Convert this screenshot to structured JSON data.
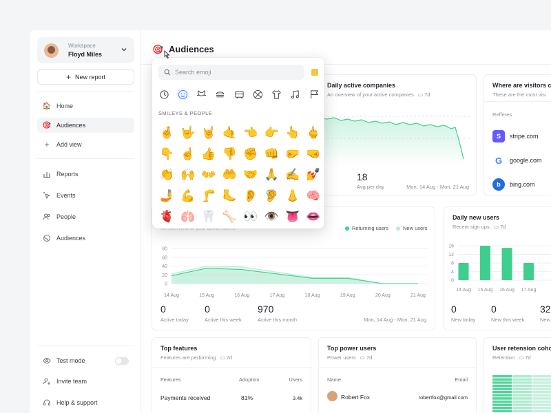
{
  "sidebar": {
    "workspace_label": "Workspace",
    "workspace_name": "Floyd Miles",
    "new_report": "New report",
    "nav": [
      {
        "label": "Home",
        "icon": "house-emoji",
        "glyph": "🏠"
      },
      {
        "label": "Audiences",
        "icon": "dart-emoji",
        "glyph": "🎯"
      },
      {
        "label": "Add view",
        "icon": "plus-icon",
        "glyph": "+"
      }
    ],
    "nav2": [
      {
        "label": "Reports",
        "icon": "bar-chart-icon"
      },
      {
        "label": "Events",
        "icon": "cursor-click-icon"
      },
      {
        "label": "People",
        "icon": "people-icon"
      },
      {
        "label": "Audiences",
        "icon": "globe-icon"
      }
    ],
    "footer": [
      {
        "label": "Test mode",
        "icon": "eye-icon"
      },
      {
        "label": "Invite team",
        "icon": "add-user-icon"
      },
      {
        "label": "Help & support",
        "icon": "headset-icon"
      }
    ]
  },
  "header": {
    "emoji": "🎯",
    "title": "Audiences"
  },
  "picker": {
    "placeholder": "Search emoji",
    "section": "SMILEYS & PEOPLE",
    "categories": [
      "recent-icon",
      "smiley-icon",
      "cat-icon",
      "burger-icon",
      "bus-icon",
      "ball-icon",
      "shirt-icon",
      "music-icon",
      "flag-icon"
    ],
    "emojis": [
      "🤞",
      "🤟",
      "🤘",
      "🤙",
      "👈",
      "👉",
      "👆",
      "🖕",
      "👇",
      "☝️",
      "👍",
      "👎",
      "✊",
      "👊",
      "🤛",
      "🤜",
      "👏",
      "🙌",
      "👐",
      "🤲",
      "🤝",
      "🙏",
      "✍️",
      "💅",
      "🤳",
      "💪",
      "🦵",
      "🦶",
      "👂",
      "🦻",
      "👃",
      "🧠",
      "🫀",
      "🫁",
      "🦷",
      "🦴",
      "👀",
      "👁️",
      "👅",
      "👄"
    ]
  },
  "daily_active": {
    "title": "Daily active companies",
    "subtitle": "An overview of your active companies",
    "range": "7d",
    "value": "18",
    "value_label": "Avg per day",
    "date_range": "Mon, 14 Aug - Mon, 21 Aug"
  },
  "visitors": {
    "title": "Where are visitors co",
    "subtitle": "These are the most visi",
    "section": "Refferes",
    "referrers": [
      {
        "name": "stripe.com",
        "color": "#635bff",
        "letter": "S"
      },
      {
        "name": "google.com",
        "color": "#ffffff",
        "letter": "G"
      },
      {
        "name": "bing.com",
        "color": "#1e6fd9",
        "letter": "b"
      }
    ]
  },
  "active_users": {
    "subtitle_partial": "An overview of your active users",
    "legend": [
      {
        "label": "Returning users",
        "color": "#3ecf8e"
      },
      {
        "label": "New users",
        "color": "#b7ecd4"
      }
    ],
    "y_ticks": [
      "80",
      "60",
      "40",
      "20",
      "0"
    ],
    "x_ticks": [
      "14 Aug",
      "15 Aug",
      "16 Aug",
      "17 Aug",
      "18 Aug",
      "19 Aug",
      "20 Aug",
      "21 Aug"
    ],
    "stats": [
      {
        "value": "0",
        "label": "Active today"
      },
      {
        "value": "0",
        "label": "Active this week"
      },
      {
        "value": "970",
        "label": "Active this month"
      }
    ],
    "date_range": "Mon, 14 Aug - Mon, 21 Aug"
  },
  "new_users": {
    "title": "Daily new users",
    "subtitle": "Recent sign ups",
    "range": "7d",
    "y_ticks": [
      "16",
      "12",
      "8",
      "4",
      "0"
    ],
    "x_ticks": [
      "14 Aug",
      "15 Aug",
      "16 Aug",
      "17 Aug"
    ],
    "stats": [
      {
        "value": "0",
        "label": "New today"
      },
      {
        "value": "0",
        "label": "New this week"
      },
      {
        "value": "32",
        "label": "New"
      }
    ]
  },
  "top_features": {
    "title": "Top features",
    "subtitle": "Features are performing",
    "range": "7d",
    "columns": [
      "Features",
      "Adoption",
      "Users"
    ],
    "rows": [
      {
        "feature": "Payments received",
        "adoption": "81%",
        "users": "3.4k"
      }
    ]
  },
  "power_users": {
    "title": "Top power users",
    "subtitle": "Power users",
    "range": "7d",
    "columns": [
      "Name",
      "Email"
    ],
    "rows": [
      {
        "name": "Robert Fox",
        "email": "robertfox@gmail.com"
      }
    ]
  },
  "retention": {
    "title": "User retension coho",
    "subtitle": "Retention",
    "range": "7d"
  },
  "chart_data": [
    {
      "type": "area",
      "title": "",
      "x": [
        "14 Aug",
        "15 Aug",
        "16 Aug",
        "17 Aug",
        "18 Aug",
        "19 Aug",
        "20 Aug",
        "21 Aug"
      ],
      "ylim": [
        0,
        80
      ],
      "series": [
        {
          "name": "Returning users",
          "values": [
            18,
            35,
            32,
            22,
            12,
            12,
            0,
            0
          ]
        },
        {
          "name": "New users",
          "values": [
            22,
            40,
            38,
            26,
            14,
            14,
            0,
            0
          ]
        }
      ]
    },
    {
      "type": "bar",
      "title": "Daily new users",
      "categories": [
        "14 Aug",
        "15 Aug",
        "16 Aug",
        "17 Aug"
      ],
      "values": [
        8,
        16,
        15,
        8
      ],
      "ylim": [
        0,
        16
      ]
    }
  ]
}
